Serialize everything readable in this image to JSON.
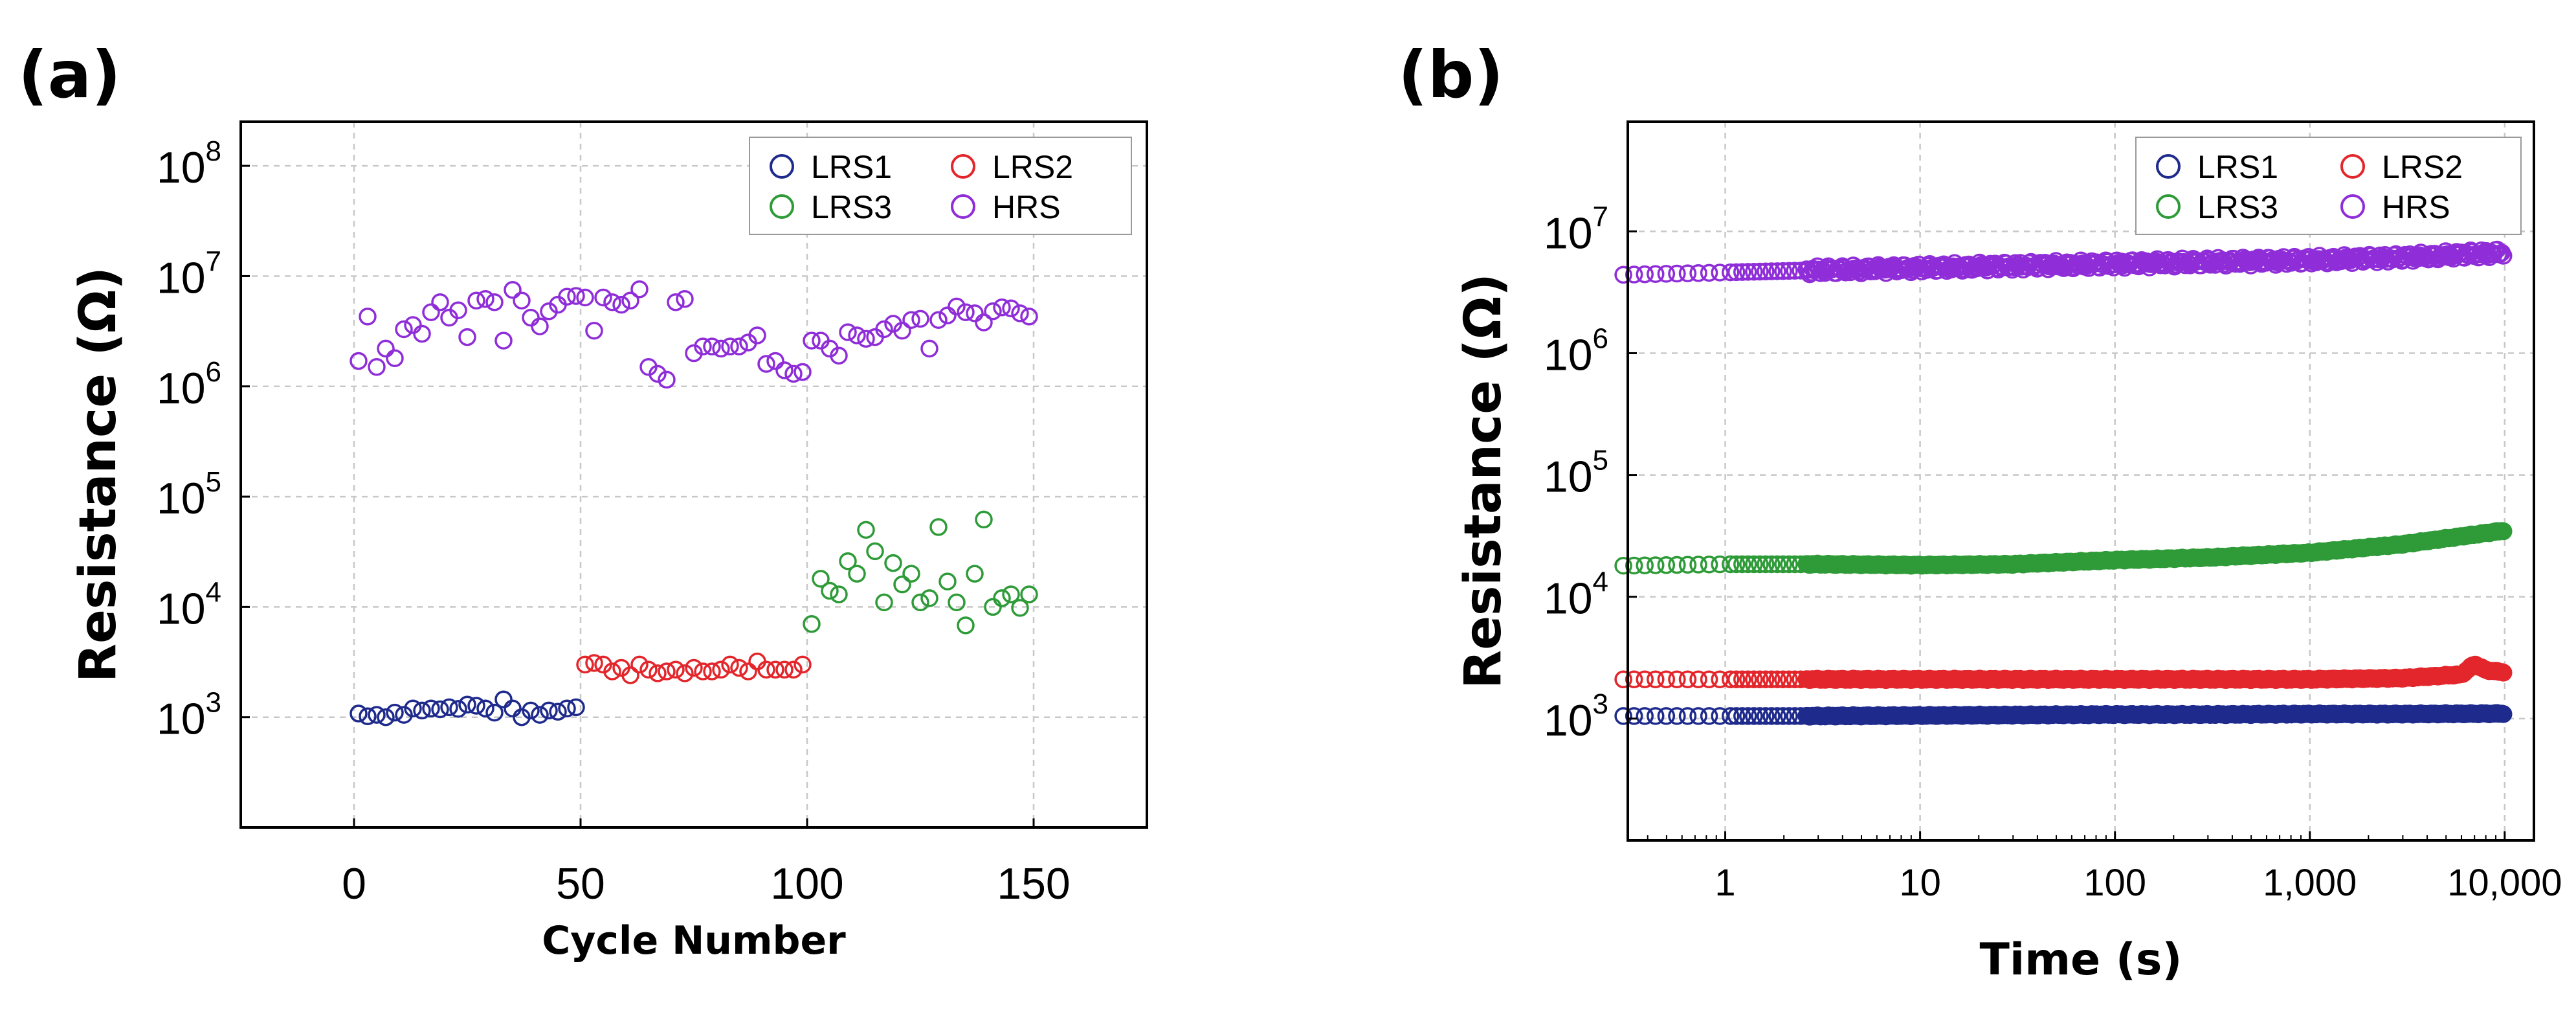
{
  "chart_data": [
    {
      "panel": "(a)",
      "type": "scatter",
      "xlabel": "Cycle Number",
      "ylabel": "Resistance (Ω)",
      "xscale": "linear",
      "yscale": "log",
      "xlim": [
        -25,
        175
      ],
      "ylim_exp": [
        2,
        8.4
      ],
      "xticks": [
        0,
        50,
        100,
        150
      ],
      "xtick_labels": [
        "0",
        "50",
        "100",
        "150"
      ],
      "yticks": [
        3,
        4,
        5,
        6,
        7,
        8
      ],
      "ytick_base": "10",
      "ytick_exponents": [
        "3",
        "4",
        "5",
        "6",
        "7",
        "8"
      ],
      "grid": true,
      "legend_position": "top-right",
      "series": [
        {
          "name": "LRS1",
          "color": "#1e2a8c",
          "x": [
            1,
            3,
            5,
            7,
            9,
            11,
            13,
            15,
            17,
            19,
            21,
            23,
            25,
            27,
            29,
            31,
            33,
            35,
            37,
            39,
            41,
            43,
            45,
            47,
            49
          ],
          "y": [
            1080,
            1020,
            1050,
            1000,
            1100,
            1050,
            1200,
            1150,
            1200,
            1180,
            1230,
            1190,
            1300,
            1270,
            1200,
            1100,
            1450,
            1200,
            1000,
            1150,
            1050,
            1150,
            1120,
            1200,
            1230
          ]
        },
        {
          "name": "LRS2",
          "color": "#e3262b",
          "x": [
            51,
            53,
            55,
            57,
            59,
            61,
            63,
            65,
            67,
            69,
            71,
            73,
            75,
            77,
            79,
            81,
            83,
            85,
            87,
            89,
            91,
            93,
            95,
            97,
            99
          ],
          "y": [
            3000,
            3100,
            3000,
            2600,
            2800,
            2400,
            3000,
            2700,
            2500,
            2600,
            2700,
            2500,
            2800,
            2600,
            2600,
            2700,
            3000,
            2800,
            2600,
            3200,
            2700,
            2700,
            2700,
            2700,
            3000
          ]
        },
        {
          "name": "LRS3",
          "color": "#2e9b38",
          "x": [
            101,
            103,
            105,
            107,
            109,
            111,
            113,
            115,
            117,
            119,
            121,
            123,
            125,
            127,
            129,
            131,
            133,
            135,
            137,
            139,
            141,
            143,
            145,
            147,
            149
          ],
          "y": [
            7000,
            18000,
            14000,
            13000,
            26000,
            20000,
            50000,
            32000,
            11000,
            25000,
            16000,
            20000,
            11000,
            12000,
            53000,
            17000,
            11000,
            6800,
            20000,
            62000,
            10000,
            12000,
            13000,
            9800,
            13000
          ]
        },
        {
          "name": "HRS",
          "color": "#8f2ed8",
          "x": [
            1,
            3,
            5,
            7,
            9,
            11,
            13,
            15,
            17,
            19,
            21,
            23,
            25,
            27,
            29,
            31,
            33,
            35,
            37,
            39,
            41,
            43,
            45,
            47,
            49,
            51,
            53,
            55,
            57,
            59,
            61,
            63,
            65,
            67,
            69,
            71,
            73,
            75,
            77,
            79,
            81,
            83,
            85,
            87,
            89,
            91,
            93,
            95,
            97,
            99,
            101,
            103,
            105,
            107,
            109,
            111,
            113,
            115,
            117,
            119,
            121,
            123,
            125,
            127,
            129,
            131,
            133,
            135,
            137,
            139,
            141,
            143,
            145,
            147,
            149
          ],
          "y": [
            1700000,
            4300000,
            1500000,
            2200000,
            1800000,
            3300000,
            3600000,
            3000000,
            4700000,
            5800000,
            4200000,
            4900000,
            2800000,
            6000000,
            6200000,
            5800000,
            2600000,
            7500000,
            6000000,
            4200000,
            3500000,
            4800000,
            5500000,
            6500000,
            6600000,
            6400000,
            3200000,
            6400000,
            5800000,
            5500000,
            6000000,
            7600000,
            1500000,
            1300000,
            1150000,
            5800000,
            6200000,
            2000000,
            2300000,
            2300000,
            2200000,
            2300000,
            2300000,
            2500000,
            2900000,
            1600000,
            1700000,
            1400000,
            1300000,
            1350000,
            2600000,
            2600000,
            2200000,
            1900000,
            3100000,
            2900000,
            2700000,
            2800000,
            3300000,
            3700000,
            3200000,
            4000000,
            4100000,
            2200000,
            4000000,
            4400000,
            5300000,
            4700000,
            4600000,
            3800000,
            4800000,
            5200000,
            5100000,
            4600000,
            4300000
          ]
        }
      ]
    },
    {
      "panel": "(b)",
      "type": "scatter",
      "xlabel": "Time (s)",
      "ylabel": "Resistance (Ω)",
      "xscale": "log",
      "yscale": "log",
      "xlim_exp": [
        -0.5,
        4.15
      ],
      "ylim_exp": [
        2,
        7.9
      ],
      "xticks_exp": [
        0,
        1,
        2,
        3,
        4
      ],
      "xtick_labels": [
        "1",
        "10",
        "100",
        "1,000",
        "10,000"
      ],
      "yticks": [
        3,
        4,
        5,
        6,
        7
      ],
      "ytick_base": "10",
      "ytick_exponents": [
        "3",
        "4",
        "5",
        "6",
        "7"
      ],
      "grid": true,
      "legend_position": "top-right",
      "series": [
        {
          "name": "LRS1",
          "color": "#1e2a8c",
          "t": [
            0.3,
            1,
            3,
            10,
            30,
            100,
            300,
            1000,
            3000,
            10000
          ],
          "y": [
            1050,
            1050,
            1050,
            1060,
            1070,
            1080,
            1080,
            1090,
            1090,
            1100
          ]
        },
        {
          "name": "LRS2",
          "color": "#e3262b",
          "t": [
            0.3,
            1,
            3,
            10,
            30,
            100,
            300,
            1000,
            3000,
            6000,
            7000,
            8000,
            10000
          ],
          "y": [
            2100,
            2100,
            2100,
            2100,
            2100,
            2100,
            2100,
            2100,
            2150,
            2300,
            2800,
            2500,
            2400
          ]
        },
        {
          "name": "LRS3",
          "color": "#2e9b38",
          "t": [
            0.3,
            1,
            3,
            10,
            30,
            100,
            300,
            1000,
            3000,
            10000
          ],
          "y": [
            18000,
            18500,
            18500,
            18200,
            18500,
            20000,
            21000,
            23000,
            27000,
            35000
          ]
        },
        {
          "name": "HRS",
          "color": "#8f2ed8",
          "t": [
            0.3,
            1,
            3,
            10,
            30,
            100,
            300,
            1000,
            3000,
            10000
          ],
          "y": [
            4400000,
            4600000,
            4800000,
            5000000,
            5200000,
            5400000,
            5600000,
            5800000,
            6100000,
            6700000
          ]
        }
      ]
    }
  ]
}
